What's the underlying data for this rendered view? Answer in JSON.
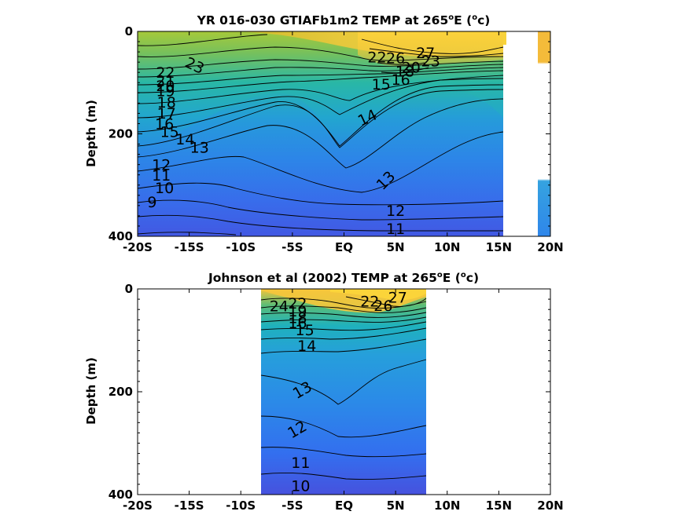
{
  "chart_data": [
    {
      "type": "contour",
      "title_main": "YR 016-030 GTIAFb1m2 TEMP at 265",
      "title_sup": "o",
      "title_unit_pre": "E (",
      "title_unit_sup": "o",
      "title_unit_post": "c)",
      "ylabel": "Depth (m)",
      "xlim": [
        -20,
        20
      ],
      "ylim": [
        0,
        400
      ],
      "y_reversed": true,
      "x_ticks": [
        -20,
        -15,
        -10,
        -5,
        0,
        5,
        10,
        15,
        20
      ],
      "x_tick_labels": [
        "-20S",
        "-15S",
        "-10S",
        "-5S",
        "EQ",
        "5N",
        "10N",
        "15N",
        "20N"
      ],
      "y_ticks": [
        0,
        200,
        400
      ],
      "y_tick_labels": [
        "0",
        "200",
        "400"
      ],
      "data_extent": {
        "lat_min": -20,
        "lat_max": 15.2
      },
      "colorbar_visible": false,
      "contour_labels": [
        {
          "text": "23",
          "lat": -14.5,
          "depth": 68,
          "rot": 25
        },
        {
          "text": "22",
          "lat": -17.3,
          "depth": 82,
          "rot": 0
        },
        {
          "text": "21",
          "lat": -17.3,
          "depth": 98,
          "rot": 0
        },
        {
          "text": "20",
          "lat": -17.3,
          "depth": 108,
          "rot": 0
        },
        {
          "text": "19",
          "lat": -17.3,
          "depth": 118,
          "rot": 0
        },
        {
          "text": "18",
          "lat": -17.2,
          "depth": 140,
          "rot": 0
        },
        {
          "text": "17",
          "lat": -17.2,
          "depth": 162,
          "rot": 0
        },
        {
          "text": "16",
          "lat": -17.4,
          "depth": 182,
          "rot": 0
        },
        {
          "text": "15",
          "lat": -16.9,
          "depth": 198,
          "rot": 0
        },
        {
          "text": "14",
          "lat": -15.4,
          "depth": 212,
          "rot": 0
        },
        {
          "text": "13",
          "lat": -14.0,
          "depth": 228,
          "rot": 0
        },
        {
          "text": "12",
          "lat": -17.7,
          "depth": 262,
          "rot": 0
        },
        {
          "text": "11",
          "lat": -17.7,
          "depth": 283,
          "rot": 0
        },
        {
          "text": "10",
          "lat": -17.4,
          "depth": 307,
          "rot": 0
        },
        {
          "text": "9",
          "lat": -18.6,
          "depth": 335,
          "rot": 0
        },
        {
          "text": "14",
          "lat": 2.3,
          "depth": 170,
          "rot": -25
        },
        {
          "text": "13",
          "lat": 4.1,
          "depth": 292,
          "rot": -45
        },
        {
          "text": "12",
          "lat": 5.0,
          "depth": 352,
          "rot": 0
        },
        {
          "text": "11",
          "lat": 5.0,
          "depth": 387,
          "rot": 0
        },
        {
          "text": "15",
          "lat": 3.6,
          "depth": 105,
          "rot": 0
        },
        {
          "text": "16",
          "lat": 5.5,
          "depth": 96,
          "rot": 0
        },
        {
          "text": "22",
          "lat": 3.2,
          "depth": 52,
          "rot": 0
        },
        {
          "text": "26",
          "lat": 5.0,
          "depth": 54,
          "rot": 0
        },
        {
          "text": "27",
          "lat": 7.9,
          "depth": 44,
          "rot": 0
        },
        {
          "text": "23",
          "lat": 8.4,
          "depth": 60,
          "rot": 0
        },
        {
          "text": "18",
          "lat": 5.9,
          "depth": 80,
          "rot": 0
        },
        {
          "text": "20",
          "lat": 6.5,
          "depth": 72,
          "rot": 0
        }
      ]
    },
    {
      "type": "contour",
      "title_main": "Johnson et al (2002) TEMP at 265",
      "title_sup": "o",
      "title_unit_pre": "E (",
      "title_unit_sup": "o",
      "title_unit_post": "c)",
      "ylabel": "Depth (m)",
      "xlim": [
        -20,
        20
      ],
      "ylim": [
        0,
        400
      ],
      "y_reversed": true,
      "x_ticks": [
        -20,
        -15,
        -10,
        -5,
        0,
        5,
        10,
        15,
        20
      ],
      "x_tick_labels": [
        "-20S",
        "-15S",
        "-10S",
        "-5S",
        "EQ",
        "5N",
        "10N",
        "15N",
        "20N"
      ],
      "y_ticks": [
        0,
        200,
        400
      ],
      "y_tick_labels": [
        "0",
        "200",
        "400"
      ],
      "data_extent": {
        "lat_min": -8,
        "lat_max": 8
      },
      "contour_labels": [
        {
          "text": "24",
          "lat": -6.3,
          "depth": 35,
          "rot": 0
        },
        {
          "text": "22",
          "lat": -4.5,
          "depth": 30,
          "rot": 0
        },
        {
          "text": "19",
          "lat": -4.5,
          "depth": 45,
          "rot": 0
        },
        {
          "text": "18",
          "lat": -4.5,
          "depth": 58,
          "rot": 0
        },
        {
          "text": "16",
          "lat": -4.5,
          "depth": 68,
          "rot": 0
        },
        {
          "text": "15",
          "lat": -3.8,
          "depth": 82,
          "rot": 0
        },
        {
          "text": "14",
          "lat": -3.6,
          "depth": 112,
          "rot": 0
        },
        {
          "text": "13",
          "lat": -4.0,
          "depth": 198,
          "rot": -30
        },
        {
          "text": "12",
          "lat": -4.5,
          "depth": 275,
          "rot": -30
        },
        {
          "text": "11",
          "lat": -4.2,
          "depth": 340,
          "rot": 0
        },
        {
          "text": "10",
          "lat": -4.2,
          "depth": 385,
          "rot": 0
        },
        {
          "text": "22",
          "lat": 2.5,
          "depth": 26,
          "rot": 0
        },
        {
          "text": "26",
          "lat": 3.8,
          "depth": 34,
          "rot": 0
        },
        {
          "text": "27",
          "lat": 5.2,
          "depth": 18,
          "rot": 0
        }
      ]
    }
  ]
}
